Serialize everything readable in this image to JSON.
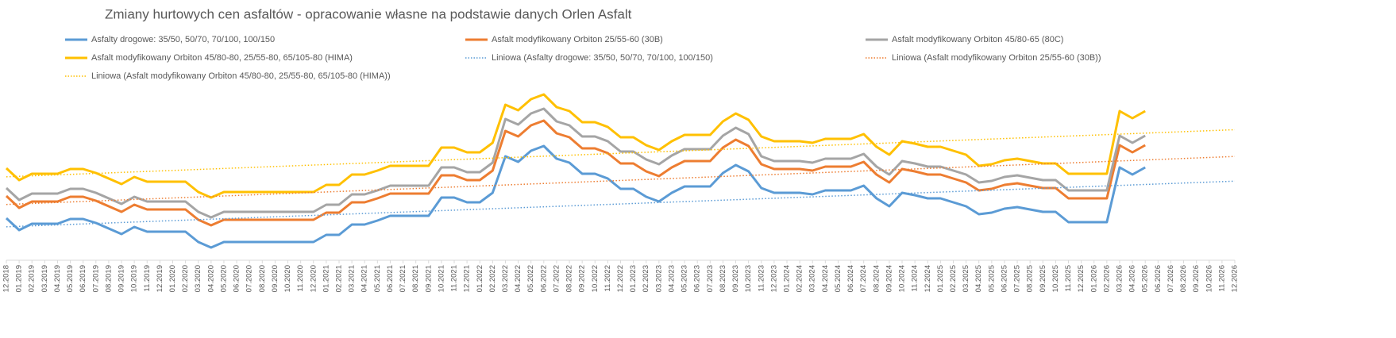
{
  "chart_data": {
    "type": "line",
    "title": "Zmiany hurtowych cen asfaltów - opracowanie własne na podstawie danych Orlen Asfalt",
    "categories": [
      "12.2018",
      "01.2019",
      "02.2019",
      "03.2019",
      "04.2019",
      "05.2019",
      "06.2019",
      "07.2019",
      "08.2019",
      "09.2019",
      "10.2019",
      "11.2019",
      "12.2019",
      "01.2020",
      "02.2020",
      "03.2020",
      "04.2020",
      "05.2020",
      "06.2020",
      "07.2020",
      "08.2020",
      "09.2020",
      "10.2020",
      "11.2020",
      "12.2020",
      "01.2021",
      "02.2021",
      "03.2021",
      "04.2021",
      "05.2021",
      "06.2021",
      "07.2021",
      "08.2021",
      "09.2021",
      "10.2021",
      "11.2021",
      "12.2021",
      "01.2022",
      "02.2022",
      "03.2022",
      "04.2022",
      "05.2022",
      "06.2022",
      "07.2022",
      "08.2022",
      "09.2022",
      "10.2022",
      "11.2022",
      "12.2022",
      "01.2023",
      "02.2023",
      "03.2023",
      "04.2023",
      "05.2023",
      "06.2023",
      "07.2023",
      "08.2023",
      "09.2023",
      "10.2023",
      "11.2023",
      "12.2023",
      "01.2024",
      "02.2024",
      "03.2024",
      "04.2024",
      "05.2024",
      "06.2024",
      "07.2024",
      "08.2024",
      "09.2024",
      "10.2024",
      "11.2024",
      "12.2024",
      "01.2025",
      "02.2025",
      "03.2025",
      "04.2025",
      "05.2025",
      "06.2025",
      "07.2025",
      "08.2025",
      "09.2025",
      "10.2025",
      "11.2025",
      "12.2025",
      "01.2026",
      "02.2026",
      "03.2026",
      "04.2026",
      "05.2026",
      "06.2026",
      "07.2026",
      "08.2026",
      "09.2026",
      "10.2026",
      "11.2026",
      "12.2026"
    ],
    "ylim": [
      1000,
      5600
    ],
    "series": [
      {
        "name": "Asfalty drogowe: 35/50, 50/70, 70/100, 100/150",
        "color": "#5b9bd5",
        "values": [
          2060,
          1760,
          1920,
          1920,
          1920,
          2040,
          2040,
          1940,
          1800,
          1660,
          1840,
          1720,
          1720,
          1720,
          1720,
          1460,
          1320,
          1460,
          1460,
          1460,
          1460,
          1460,
          1460,
          1460,
          1460,
          1640,
          1640,
          1900,
          1900,
          2000,
          2120,
          2120,
          2120,
          2120,
          2580,
          2580,
          2460,
          2460,
          2700,
          3620,
          3480,
          3760,
          3880,
          3560,
          3460,
          3180,
          3180,
          3060,
          2800,
          2800,
          2600,
          2480,
          2700,
          2860,
          2860,
          2860,
          3200,
          3400,
          3240,
          2820,
          2700,
          2700,
          2700,
          2660,
          2760,
          2760,
          2760,
          2880,
          2560,
          2360,
          2700,
          2640,
          2560,
          2560,
          2460,
          2360,
          2160,
          2200,
          2300,
          2340,
          2280,
          2220,
          2220,
          1960,
          1960,
          1960,
          1960,
          3340,
          3160,
          3340,
          null,
          null,
          null,
          null,
          null,
          null,
          null
        ]
      },
      {
        "name": "Asfalt modyfikowany Orbiton 25/55-60 (30B)",
        "color": "#ed7d31",
        "values": [
          2620,
          2320,
          2480,
          2480,
          2480,
          2600,
          2600,
          2500,
          2360,
          2220,
          2400,
          2280,
          2280,
          2280,
          2280,
          2020,
          1880,
          2020,
          2020,
          2020,
          2020,
          2020,
          2020,
          2020,
          2020,
          2200,
          2200,
          2460,
          2460,
          2560,
          2680,
          2680,
          2680,
          2680,
          3140,
          3140,
          3020,
          3020,
          3260,
          4260,
          4120,
          4400,
          4520,
          4200,
          4100,
          3820,
          3820,
          3700,
          3440,
          3440,
          3240,
          3120,
          3340,
          3500,
          3500,
          3500,
          3840,
          4040,
          3880,
          3420,
          3300,
          3300,
          3300,
          3260,
          3360,
          3360,
          3360,
          3480,
          3160,
          2960,
          3300,
          3240,
          3160,
          3160,
          3060,
          2960,
          2760,
          2800,
          2900,
          2940,
          2880,
          2820,
          2820,
          2560,
          2560,
          2560,
          2560,
          3900,
          3720,
          3900,
          null,
          null,
          null,
          null,
          null,
          null,
          null
        ]
      },
      {
        "name": "Asfalt modyfikowany Orbiton 45/80-65 (80C)",
        "color": "#a5a5a5",
        "values": [
          2820,
          2520,
          2680,
          2680,
          2680,
          2800,
          2800,
          2700,
          2560,
          2420,
          2600,
          2480,
          2480,
          2480,
          2480,
          2220,
          2080,
          2220,
          2220,
          2220,
          2220,
          2220,
          2220,
          2220,
          2220,
          2400,
          2400,
          2660,
          2660,
          2760,
          2880,
          2880,
          2880,
          2880,
          3340,
          3340,
          3220,
          3220,
          3460,
          4560,
          4420,
          4700,
          4820,
          4500,
          4400,
          4120,
          4120,
          4000,
          3740,
          3740,
          3540,
          3420,
          3640,
          3800,
          3800,
          3800,
          4140,
          4340,
          4180,
          3620,
          3500,
          3500,
          3500,
          3460,
          3560,
          3560,
          3560,
          3680,
          3360,
          3160,
          3500,
          3440,
          3360,
          3360,
          3260,
          3160,
          2960,
          3000,
          3100,
          3140,
          3080,
          3020,
          3020,
          2760,
          2760,
          2760,
          2760,
          4140,
          3960,
          4140,
          null,
          null,
          null,
          null,
          null,
          null,
          null
        ]
      },
      {
        "name": "Asfalt modyfikowany Orbiton 45/80-80, 25/55-80, 65/105-80 (HIMA)",
        "color": "#ffc000",
        "values": [
          3320,
          3020,
          3180,
          3180,
          3180,
          3300,
          3300,
          3200,
          3060,
          2920,
          3100,
          2980,
          2980,
          2980,
          2980,
          2720,
          2580,
          2720,
          2720,
          2720,
          2720,
          2720,
          2720,
          2720,
          2720,
          2900,
          2900,
          3160,
          3160,
          3260,
          3380,
          3380,
          3380,
          3380,
          3840,
          3840,
          3720,
          3720,
          3960,
          4920,
          4780,
          5060,
          5180,
          4860,
          4760,
          4480,
          4480,
          4360,
          4100,
          4100,
          3900,
          3780,
          4000,
          4160,
          4160,
          4160,
          4500,
          4700,
          4540,
          4120,
          4000,
          4000,
          4000,
          3960,
          4060,
          4060,
          4060,
          4180,
          3860,
          3660,
          4000,
          3940,
          3860,
          3860,
          3760,
          3660,
          3380,
          3420,
          3520,
          3560,
          3500,
          3440,
          3440,
          3180,
          3180,
          3180,
          3180,
          4760,
          4580,
          4760,
          null,
          null,
          null,
          null,
          null,
          null,
          null
        ]
      },
      {
        "name": "Liniowa (Asfalty drogowe: 35/50, 50/70, 70/100, 100/150)",
        "color": "#5b9bd5",
        "trend": "linear",
        "source": 0
      },
      {
        "name": "Liniowa (Asfalt modyfikowany Orbiton 25/55-60 (30B))",
        "color": "#ed7d31",
        "trend": "linear",
        "source": 1
      },
      {
        "name": "Liniowa (Asfalt modyfikowany Orbiton 45/80-80, 25/55-80, 65/105-80 (HIMA))",
        "color": "#ffc000",
        "trend": "linear",
        "source": 3
      }
    ]
  }
}
